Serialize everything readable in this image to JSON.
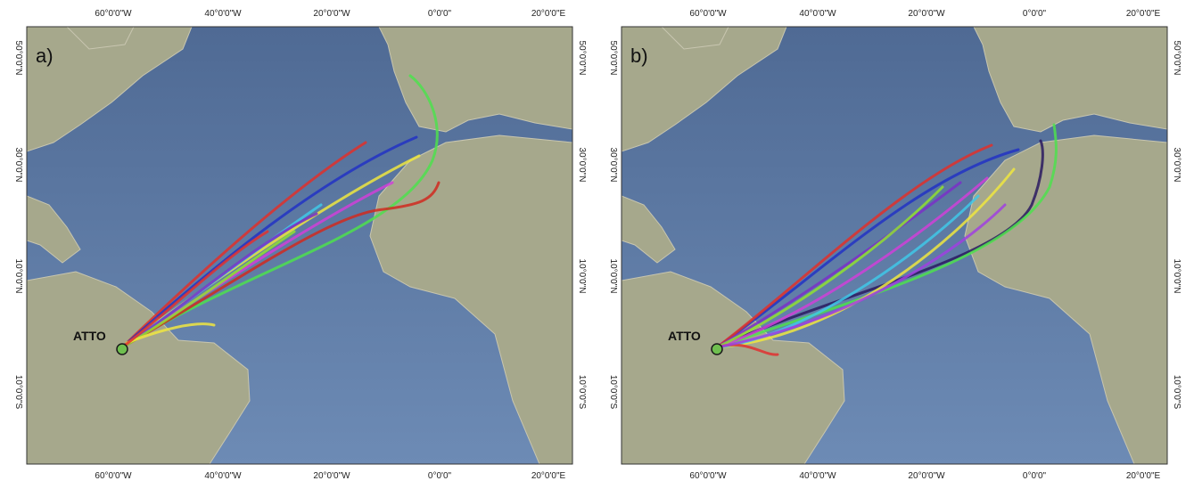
{
  "panels": [
    {
      "label": "a)",
      "station": "ATTO",
      "top_ticks": [
        "60°0'0\"W",
        "40°0'0\"W",
        "20°0'0\"W",
        "0°0'0\"",
        "20°0'0\"E"
      ],
      "bottom_ticks": [
        "60°0'0\"W",
        "40°0'0\"W",
        "20°0'0\"W",
        "0°0'0\"",
        "20°0'0\"E"
      ],
      "left_ticks": [
        "50°0'0\"N",
        "30°0'0\"N",
        "10°0'0\"N",
        "10°0'0\"S"
      ],
      "right_ticks": [
        "50°0'0\"N",
        "30°0'0\"N",
        "10°0'0\"N",
        "10°0'0\"S"
      ]
    },
    {
      "label": "b)",
      "station": "ATTO",
      "top_ticks": [
        "60°0'0\"W",
        "40°0'0\"W",
        "20°0'0\"W",
        "0°0'0\"",
        "20°0'0\"E"
      ],
      "bottom_ticks": [
        "60°0'0\"W",
        "40°0'0\"W",
        "20°0'0\"W",
        "0°0'0\"",
        "20°0'0\"E"
      ],
      "left_ticks": [
        "50°0'0\"N",
        "30°0'0\"N",
        "10°0'0\"N",
        "10°0'0\"S"
      ],
      "right_ticks": [
        "50°0'0\"N",
        "30°0'0\"N",
        "10°0'0\"N",
        "10°0'0\"S"
      ]
    }
  ]
}
